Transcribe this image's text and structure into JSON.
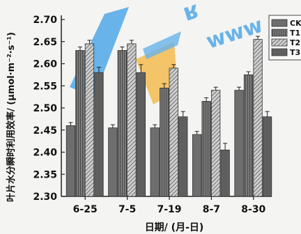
{
  "chart_data": {
    "type": "bar",
    "title": "",
    "ylabel": "叶片水分瞬时利用效率/ (μmol·m⁻²·s⁻¹)",
    "xlabel": "日期/ (月-日)",
    "categories": [
      "6-25",
      "7-5",
      "7-19",
      "8-7",
      "8-30"
    ],
    "ylim": [
      2.3,
      2.7
    ],
    "yticks": [
      "2.30",
      "2.35",
      "2.40",
      "2.45",
      "2.50",
      "2.55",
      "2.60",
      "2.65",
      "2.70"
    ],
    "error_bars": true,
    "legend_position": "top-right",
    "series": [
      {
        "name": "CK",
        "values": [
          2.46,
          2.455,
          2.455,
          2.44,
          2.54
        ],
        "errors": [
          0.007,
          0.007,
          0.007,
          0.007,
          0.007
        ]
      },
      {
        "name": "T1",
        "values": [
          2.63,
          2.63,
          2.545,
          2.515,
          2.575
        ],
        "errors": [
          0.008,
          0.008,
          0.01,
          0.008,
          0.007
        ]
      },
      {
        "name": "T2",
        "values": [
          2.645,
          2.645,
          2.59,
          2.54,
          2.655
        ],
        "errors": [
          0.008,
          0.008,
          0.008,
          0.007,
          0.007
        ]
      },
      {
        "name": "T3",
        "values": [
          2.58,
          2.58,
          2.48,
          2.405,
          2.48
        ],
        "errors": [
          0.012,
          0.018,
          0.012,
          0.015,
          0.012
        ]
      }
    ]
  },
  "legend_labels": [
    "CK",
    "T1",
    "T2",
    "T3"
  ]
}
